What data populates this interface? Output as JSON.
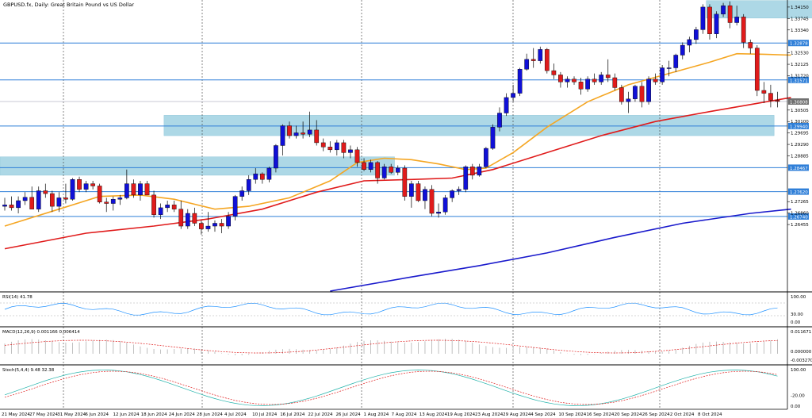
{
  "window": {
    "title": "GBPUSD.fx, Daily:  Great Britain Pound vs US Dollar"
  },
  "chart_data": {
    "type": "candlestick",
    "symbol": "GBPUSD.fx",
    "timeframe": "Daily",
    "price_axis": {
      "range": [
        1.241,
        1.344
      ],
      "ticks": [
        "1.34150",
        "1.33745",
        "1.33340",
        "1.32530",
        "1.32125",
        "1.31720",
        "1.30505",
        "1.30100",
        "1.29695",
        "1.29290",
        "1.28885",
        "1.27265",
        "1.26860",
        "1.26455"
      ]
    },
    "horizontal_levels": [
      {
        "label": "1.32878",
        "value": 1.32878
      },
      {
        "label": "1.31571",
        "value": 1.31571
      },
      {
        "label": "1.29940",
        "value": 1.2994
      },
      {
        "label": "1.28467",
        "value": 1.28467
      },
      {
        "label": "1.27620",
        "value": 1.2762
      },
      {
        "label": "1.26740",
        "value": 1.2674
      }
    ],
    "current_price": {
      "label": "1.30808",
      "value": 1.30808
    },
    "zones": [
      {
        "from_index": 104,
        "to_index": 121,
        "low": 1.3376,
        "high": 1.3438
      },
      {
        "from_index": 24,
        "to_index": 113,
        "low": 1.296,
        "high": 1.3032
      },
      {
        "from_index": 0,
        "to_index": 57,
        "low": 1.282,
        "high": 1.2885
      }
    ],
    "date_labels": [
      "21 May 2024",
      "27 May 2024",
      "31 May 2024",
      "6 Jun 2024",
      "12 Jun 2024",
      "18 Jun 2024",
      "24 Jun 2024",
      "28 Jun 2024",
      "4 Jul 2024",
      "10 Jul 2024",
      "16 Jul 2024",
      "22 Jul 2024",
      "26 Jul 2024",
      "1 Aug 2024",
      "7 Aug 2024",
      "13 Aug 2024",
      "19 Aug 2024",
      "23 Aug 2024",
      "29 Aug 2024",
      "4 Sep 2024",
      "10 Sep 2024",
      "16 Sep 2024",
      "20 Sep 2024",
      "26 Sep 2024",
      "2 Oct 2024",
      "8 Oct 2024"
    ],
    "candles": [
      {
        "o": 1.271,
        "h": 1.274,
        "l": 1.2695,
        "c": 1.2715
      },
      {
        "o": 1.2715,
        "h": 1.2745,
        "l": 1.2695,
        "c": 1.2705
      },
      {
        "o": 1.2705,
        "h": 1.2745,
        "l": 1.2685,
        "c": 1.273
      },
      {
        "o": 1.273,
        "h": 1.276,
        "l": 1.2715,
        "c": 1.2742
      },
      {
        "o": 1.2742,
        "h": 1.278,
        "l": 1.27,
        "c": 1.27
      },
      {
        "o": 1.27,
        "h": 1.278,
        "l": 1.269,
        "c": 1.2765
      },
      {
        "o": 1.2765,
        "h": 1.279,
        "l": 1.274,
        "c": 1.2755
      },
      {
        "o": 1.2755,
        "h": 1.2765,
        "l": 1.269,
        "c": 1.271
      },
      {
        "o": 1.271,
        "h": 1.276,
        "l": 1.269,
        "c": 1.274
      },
      {
        "o": 1.274,
        "h": 1.279,
        "l": 1.272,
        "c": 1.2735
      },
      {
        "o": 1.2735,
        "h": 1.281,
        "l": 1.273,
        "c": 1.2805
      },
      {
        "o": 1.2805,
        "h": 1.2815,
        "l": 1.276,
        "c": 1.277
      },
      {
        "o": 1.277,
        "h": 1.28,
        "l": 1.276,
        "c": 1.279
      },
      {
        "o": 1.279,
        "h": 1.28,
        "l": 1.277,
        "c": 1.2782
      },
      {
        "o": 1.2782,
        "h": 1.279,
        "l": 1.272,
        "c": 1.2725
      },
      {
        "o": 1.2725,
        "h": 1.274,
        "l": 1.269,
        "c": 1.272
      },
      {
        "o": 1.272,
        "h": 1.2745,
        "l": 1.2695,
        "c": 1.2735
      },
      {
        "o": 1.2735,
        "h": 1.275,
        "l": 1.2715,
        "c": 1.274
      },
      {
        "o": 1.274,
        "h": 1.284,
        "l": 1.2735,
        "c": 1.279
      },
      {
        "o": 1.279,
        "h": 1.2805,
        "l": 1.274,
        "c": 1.275
      },
      {
        "o": 1.275,
        "h": 1.28,
        "l": 1.273,
        "c": 1.279
      },
      {
        "o": 1.279,
        "h": 1.28,
        "l": 1.275,
        "c": 1.275
      },
      {
        "o": 1.275,
        "h": 1.2765,
        "l": 1.267,
        "c": 1.268
      },
      {
        "o": 1.268,
        "h": 1.272,
        "l": 1.2665,
        "c": 1.2705
      },
      {
        "o": 1.2705,
        "h": 1.273,
        "l": 1.269,
        "c": 1.2715
      },
      {
        "o": 1.2715,
        "h": 1.273,
        "l": 1.269,
        "c": 1.27
      },
      {
        "o": 1.27,
        "h": 1.273,
        "l": 1.263,
        "c": 1.264
      },
      {
        "o": 1.264,
        "h": 1.27,
        "l": 1.263,
        "c": 1.2685
      },
      {
        "o": 1.2685,
        "h": 1.2705,
        "l": 1.264,
        "c": 1.265
      },
      {
        "o": 1.265,
        "h": 1.266,
        "l": 1.261,
        "c": 1.263
      },
      {
        "o": 1.263,
        "h": 1.269,
        "l": 1.262,
        "c": 1.264
      },
      {
        "o": 1.264,
        "h": 1.266,
        "l": 1.262,
        "c": 1.265
      },
      {
        "o": 1.265,
        "h": 1.2665,
        "l": 1.2615,
        "c": 1.264
      },
      {
        "o": 1.264,
        "h": 1.269,
        "l": 1.263,
        "c": 1.2675
      },
      {
        "o": 1.2675,
        "h": 1.275,
        "l": 1.266,
        "c": 1.2745
      },
      {
        "o": 1.2745,
        "h": 1.278,
        "l": 1.273,
        "c": 1.2765
      },
      {
        "o": 1.2765,
        "h": 1.282,
        "l": 1.275,
        "c": 1.2805
      },
      {
        "o": 1.2805,
        "h": 1.2845,
        "l": 1.279,
        "c": 1.2825
      },
      {
        "o": 1.2825,
        "h": 1.283,
        "l": 1.279,
        "c": 1.2805
      },
      {
        "o": 1.2805,
        "h": 1.285,
        "l": 1.2795,
        "c": 1.2845
      },
      {
        "o": 1.2845,
        "h": 1.293,
        "l": 1.283,
        "c": 1.2925
      },
      {
        "o": 1.2925,
        "h": 1.3,
        "l": 1.289,
        "c": 1.2995
      },
      {
        "o": 1.2995,
        "h": 1.301,
        "l": 1.295,
        "c": 1.296
      },
      {
        "o": 1.296,
        "h": 1.2995,
        "l": 1.295,
        "c": 1.297
      },
      {
        "o": 1.297,
        "h": 1.301,
        "l": 1.295,
        "c": 1.2965
      },
      {
        "o": 1.2965,
        "h": 1.3045,
        "l": 1.2955,
        "c": 1.298
      },
      {
        "o": 1.298,
        "h": 1.3015,
        "l": 1.2925,
        "c": 1.2935
      },
      {
        "o": 1.2935,
        "h": 1.295,
        "l": 1.2905,
        "c": 1.292
      },
      {
        "o": 1.292,
        "h": 1.294,
        "l": 1.29,
        "c": 1.291
      },
      {
        "o": 1.291,
        "h": 1.2945,
        "l": 1.289,
        "c": 1.2935
      },
      {
        "o": 1.2935,
        "h": 1.2945,
        "l": 1.288,
        "c": 1.29
      },
      {
        "o": 1.29,
        "h": 1.2925,
        "l": 1.288,
        "c": 1.291
      },
      {
        "o": 1.291,
        "h": 1.292,
        "l": 1.285,
        "c": 1.2865
      },
      {
        "o": 1.2865,
        "h": 1.288,
        "l": 1.2835,
        "c": 1.284
      },
      {
        "o": 1.284,
        "h": 1.2875,
        "l": 1.283,
        "c": 1.2865
      },
      {
        "o": 1.2865,
        "h": 1.287,
        "l": 1.279,
        "c": 1.281
      },
      {
        "o": 1.281,
        "h": 1.286,
        "l": 1.2805,
        "c": 1.285
      },
      {
        "o": 1.285,
        "h": 1.286,
        "l": 1.2825,
        "c": 1.283
      },
      {
        "o": 1.283,
        "h": 1.2855,
        "l": 1.282,
        "c": 1.2845
      },
      {
        "o": 1.2845,
        "h": 1.2855,
        "l": 1.273,
        "c": 1.2745
      },
      {
        "o": 1.2745,
        "h": 1.28,
        "l": 1.2705,
        "c": 1.279
      },
      {
        "o": 1.279,
        "h": 1.28,
        "l": 1.2725,
        "c": 1.273
      },
      {
        "o": 1.273,
        "h": 1.278,
        "l": 1.27,
        "c": 1.277
      },
      {
        "o": 1.277,
        "h": 1.2785,
        "l": 1.2675,
        "c": 1.2685
      },
      {
        "o": 1.2685,
        "h": 1.272,
        "l": 1.267,
        "c": 1.269
      },
      {
        "o": 1.269,
        "h": 1.275,
        "l": 1.268,
        "c": 1.274
      },
      {
        "o": 1.274,
        "h": 1.277,
        "l": 1.2725,
        "c": 1.2765
      },
      {
        "o": 1.2765,
        "h": 1.278,
        "l": 1.275,
        "c": 1.277
      },
      {
        "o": 1.277,
        "h": 1.2855,
        "l": 1.276,
        "c": 1.285
      },
      {
        "o": 1.285,
        "h": 1.286,
        "l": 1.2805,
        "c": 1.282
      },
      {
        "o": 1.282,
        "h": 1.286,
        "l": 1.2815,
        "c": 1.285
      },
      {
        "o": 1.285,
        "h": 1.292,
        "l": 1.2845,
        "c": 1.2915
      },
      {
        "o": 1.2915,
        "h": 1.3,
        "l": 1.291,
        "c": 1.299
      },
      {
        "o": 1.299,
        "h": 1.306,
        "l": 1.2975,
        "c": 1.304
      },
      {
        "o": 1.304,
        "h": 1.311,
        "l": 1.303,
        "c": 1.3095
      },
      {
        "o": 1.3095,
        "h": 1.314,
        "l": 1.308,
        "c": 1.311
      },
      {
        "o": 1.311,
        "h": 1.32,
        "l": 1.31,
        "c": 1.3195
      },
      {
        "o": 1.3195,
        "h": 1.325,
        "l": 1.319,
        "c": 1.323
      },
      {
        "o": 1.323,
        "h": 1.327,
        "l": 1.32,
        "c": 1.3225
      },
      {
        "o": 1.3225,
        "h": 1.3275,
        "l": 1.3215,
        "c": 1.3265
      },
      {
        "o": 1.3265,
        "h": 1.327,
        "l": 1.318,
        "c": 1.319
      },
      {
        "o": 1.319,
        "h": 1.3215,
        "l": 1.316,
        "c": 1.3175
      },
      {
        "o": 1.3175,
        "h": 1.3185,
        "l": 1.313,
        "c": 1.315
      },
      {
        "o": 1.315,
        "h": 1.317,
        "l": 1.313,
        "c": 1.316
      },
      {
        "o": 1.316,
        "h": 1.317,
        "l": 1.314,
        "c": 1.315
      },
      {
        "o": 1.315,
        "h": 1.3165,
        "l": 1.3105,
        "c": 1.3125
      },
      {
        "o": 1.3125,
        "h": 1.317,
        "l": 1.3115,
        "c": 1.316
      },
      {
        "o": 1.316,
        "h": 1.318,
        "l": 1.314,
        "c": 1.315
      },
      {
        "o": 1.315,
        "h": 1.3185,
        "l": 1.314,
        "c": 1.3175
      },
      {
        "o": 1.3175,
        "h": 1.323,
        "l": 1.315,
        "c": 1.3165
      },
      {
        "o": 1.3165,
        "h": 1.318,
        "l": 1.312,
        "c": 1.313
      },
      {
        "o": 1.313,
        "h": 1.314,
        "l": 1.307,
        "c": 1.308
      },
      {
        "o": 1.308,
        "h": 1.3115,
        "l": 1.304,
        "c": 1.309
      },
      {
        "o": 1.309,
        "h": 1.314,
        "l": 1.308,
        "c": 1.3135
      },
      {
        "o": 1.3135,
        "h": 1.315,
        "l": 1.306,
        "c": 1.308
      },
      {
        "o": 1.308,
        "h": 1.317,
        "l": 1.307,
        "c": 1.316
      },
      {
        "o": 1.316,
        "h": 1.318,
        "l": 1.314,
        "c": 1.315
      },
      {
        "o": 1.315,
        "h": 1.321,
        "l": 1.314,
        "c": 1.32
      },
      {
        "o": 1.32,
        "h": 1.3225,
        "l": 1.317,
        "c": 1.32
      },
      {
        "o": 1.32,
        "h": 1.325,
        "l": 1.3185,
        "c": 1.3245
      },
      {
        "o": 1.3245,
        "h": 1.329,
        "l": 1.323,
        "c": 1.328
      },
      {
        "o": 1.328,
        "h": 1.331,
        "l": 1.3255,
        "c": 1.33
      },
      {
        "o": 1.33,
        "h": 1.3345,
        "l": 1.3285,
        "c": 1.3335
      },
      {
        "o": 1.3335,
        "h": 1.3425,
        "l": 1.332,
        "c": 1.3415
      },
      {
        "o": 1.3415,
        "h": 1.3425,
        "l": 1.33,
        "c": 1.332
      },
      {
        "o": 1.332,
        "h": 1.34,
        "l": 1.3305,
        "c": 1.339
      },
      {
        "o": 1.339,
        "h": 1.343,
        "l": 1.338,
        "c": 1.342
      },
      {
        "o": 1.342,
        "h": 1.3435,
        "l": 1.334,
        "c": 1.336
      },
      {
        "o": 1.336,
        "h": 1.342,
        "l": 1.335,
        "c": 1.338
      },
      {
        "o": 1.338,
        "h": 1.339,
        "l": 1.327,
        "c": 1.329
      },
      {
        "o": 1.329,
        "h": 1.33,
        "l": 1.325,
        "c": 1.327
      },
      {
        "o": 1.327,
        "h": 1.328,
        "l": 1.31,
        "c": 1.312
      },
      {
        "o": 1.312,
        "h": 1.315,
        "l": 1.3075,
        "c": 1.311
      },
      {
        "o": 1.311,
        "h": 1.314,
        "l": 1.306,
        "c": 1.3085
      },
      {
        "o": 1.3085,
        "h": 1.3115,
        "l": 1.306,
        "c": 1.3081
      }
    ],
    "moving_averages": [
      {
        "color": "#f5a623",
        "points": [
          [
            0,
            1.264
          ],
          [
            8,
            1.27
          ],
          [
            14,
            1.2745
          ],
          [
            20,
            1.275
          ],
          [
            25,
            1.2735
          ],
          [
            31,
            1.27
          ],
          [
            36,
            1.271
          ],
          [
            42,
            1.274
          ],
          [
            48,
            1.28
          ],
          [
            52,
            1.2865
          ],
          [
            56,
            1.288
          ],
          [
            60,
            1.2875
          ],
          [
            64,
            1.286
          ],
          [
            68,
            1.284
          ],
          [
            71,
            1.2845
          ],
          [
            75,
            1.29
          ],
          [
            80,
            1.299
          ],
          [
            86,
            1.308
          ],
          [
            92,
            1.314
          ],
          [
            98,
            1.318
          ],
          [
            104,
            1.322
          ],
          [
            108,
            1.325
          ],
          [
            112,
            1.3248
          ],
          [
            116,
            1.3245
          ]
        ]
      },
      {
        "color": "#e01b1b",
        "points": [
          [
            0,
            1.256
          ],
          [
            12,
            1.2615
          ],
          [
            22,
            1.264
          ],
          [
            30,
            1.2665
          ],
          [
            38,
            1.27
          ],
          [
            46,
            1.276
          ],
          [
            53,
            1.28
          ],
          [
            60,
            1.2805
          ],
          [
            66,
            1.281
          ],
          [
            72,
            1.284
          ],
          [
            80,
            1.29
          ],
          [
            88,
            1.296
          ],
          [
            96,
            1.301
          ],
          [
            104,
            1.3045
          ],
          [
            110,
            1.307
          ],
          [
            116,
            1.3095
          ]
        ]
      },
      {
        "color": "#1a1acc",
        "points": [
          [
            48,
            1.241
          ],
          [
            60,
            1.246
          ],
          [
            70,
            1.25
          ],
          [
            80,
            1.2545
          ],
          [
            90,
            1.26
          ],
          [
            100,
            1.265
          ],
          [
            110,
            1.2685
          ],
          [
            116,
            1.27
          ]
        ]
      }
    ],
    "indicators": [
      {
        "name": "RSI(14) 41.78",
        "ticks": [
          "100.00",
          "30.00",
          "0.00"
        ]
      },
      {
        "name": "MACD(12,26,9) 0.001166 0.006414",
        "ticks": [
          "0.011671",
          "0.000000",
          "-0.003270"
        ]
      },
      {
        "name": "Stoch(5,4,4) 9.48 32.38",
        "ticks": [
          "100.00",
          "-20.00",
          "0.00"
        ]
      }
    ]
  }
}
